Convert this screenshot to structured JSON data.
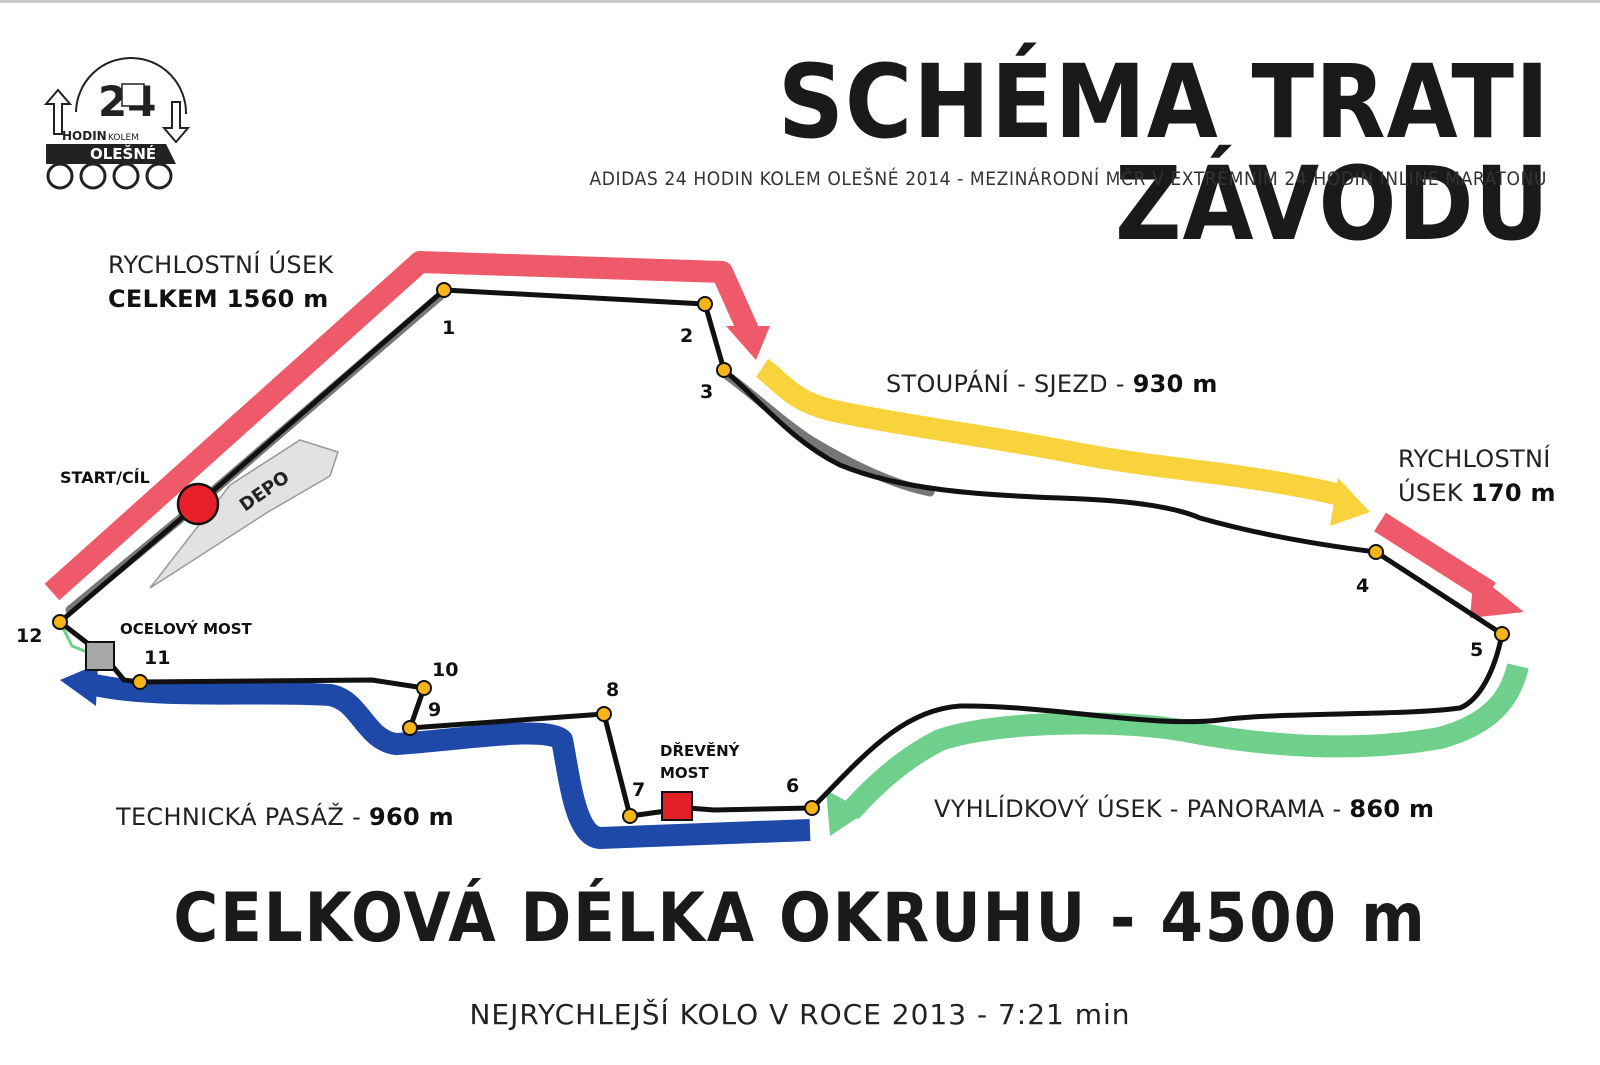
{
  "header": {
    "title": "SCHÉMA TRATI ZÁVODU",
    "subtitle": "ADIDAS 24 HODIN KOLEM OLEŠNÉ 2014 - MEZINÁRODNÍ MČR V EXTRÉMNÍM 24 HODIN INLINE MARATONU"
  },
  "logo": {
    "number": "24",
    "line1": "HODIN",
    "line2": "KOLEM",
    "line3": "OLEŠNÉ"
  },
  "sections": {
    "speed_total": {
      "title": "RYCHLOSTNÍ ÚSEK",
      "value": "CELKEM 1560 m"
    },
    "climb": {
      "text": "STOUPÁNÍ - SJEZD - ",
      "value": "930 m"
    },
    "speed_170": {
      "line1": "RYCHLOSTNÍ",
      "line2": "ÚSEK ",
      "value": "170 m"
    },
    "panorama": {
      "text": "VYHLÍDKOVÝ ÚSEK - PANORAMA - ",
      "value": "860 m"
    },
    "technical": {
      "text": "TECHNICKÁ PASÁŽ - ",
      "value": "960 m"
    }
  },
  "places": {
    "start": "START/CÍL",
    "depot": "DEPO",
    "steel_bridge": "OCELOVÝ MOST",
    "wood_bridge_1": "DŘEVĚNÝ",
    "wood_bridge_2": "MOST"
  },
  "checkpoints": [
    "1",
    "2",
    "3",
    "4",
    "5",
    "6",
    "7",
    "8",
    "9",
    "10",
    "11",
    "12"
  ],
  "footer": {
    "total": "CELKOVÁ DÉLKA OKRUHU - 4500 m",
    "record": "NEJRYCHLEJŠÍ KOLO V ROCE 2013 - 7:21 min"
  },
  "colors": {
    "speed": "#ee5a6a",
    "climb": "#f8d33c",
    "panorama": "#6fd08c",
    "technical": "#1e49a8",
    "track": "#111111",
    "checkpoint": "#f5b519",
    "start": "#e8202a",
    "wood_bridge": "#e01f26",
    "steel_bridge": "#a7a7a7"
  }
}
